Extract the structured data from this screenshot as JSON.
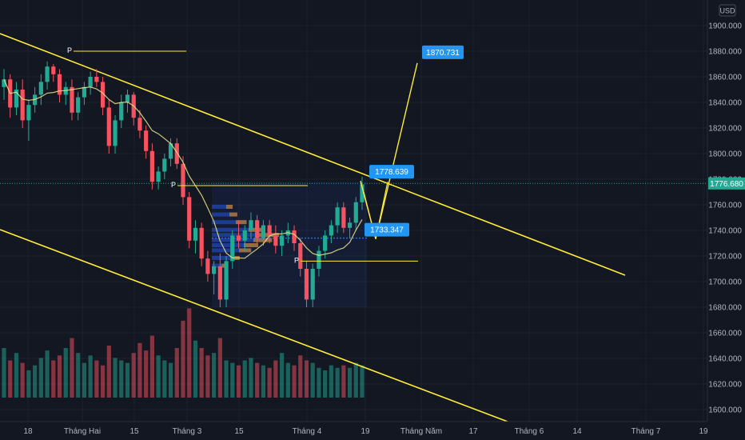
{
  "chart_data": {
    "type": "candlestick",
    "currency": "USD",
    "y_ticks": [
      1600,
      1620,
      1640,
      1660,
      1680,
      1700,
      1720,
      1740,
      1760,
      1780,
      1800,
      1820,
      1840,
      1860,
      1880,
      1900
    ],
    "y_tick_labels": [
      "1600.000",
      "1620.000",
      "1640.000",
      "1660.000",
      "1680.000",
      "1700.000",
      "1720.000",
      "1740.000",
      "1760.000",
      "1780.000",
      "1800.000",
      "1820.000",
      "1840.000",
      "1860.000",
      "1880.000",
      "1900.000"
    ],
    "ylim": [
      1593,
      1922
    ],
    "x_ticks": [
      "18",
      "Tháng Hai",
      "15",
      "Tháng 3",
      "15",
      "Tháng 4",
      "19",
      "Tháng Năm",
      "17",
      "Tháng 6",
      "14",
      "Tháng 7",
      "19"
    ],
    "current_price": 1776.68,
    "current_price_label": "1776.680",
    "annotations": [
      {
        "label": "1870.731",
        "value": 1870.731
      },
      {
        "label": "1778.639",
        "value": 1778.639
      },
      {
        "label": "1733.347",
        "value": 1733.347
      }
    ],
    "pivot_label": "P",
    "candles_ohlc": [
      [
        1852,
        1866,
        1842,
        1858
      ],
      [
        1858,
        1862,
        1828,
        1836
      ],
      [
        1836,
        1856,
        1830,
        1850
      ],
      [
        1850,
        1858,
        1820,
        1826
      ],
      [
        1826,
        1842,
        1810,
        1838
      ],
      [
        1838,
        1852,
        1832,
        1846
      ],
      [
        1846,
        1862,
        1838,
        1856
      ],
      [
        1856,
        1872,
        1850,
        1868
      ],
      [
        1868,
        1870,
        1856,
        1862
      ],
      [
        1862,
        1866,
        1840,
        1846
      ],
      [
        1846,
        1856,
        1838,
        1852
      ],
      [
        1852,
        1858,
        1826,
        1832
      ],
      [
        1832,
        1848,
        1826,
        1844
      ],
      [
        1844,
        1856,
        1838,
        1852
      ],
      [
        1852,
        1864,
        1846,
        1860
      ],
      [
        1860,
        1866,
        1852,
        1856
      ],
      [
        1856,
        1860,
        1830,
        1836
      ],
      [
        1836,
        1842,
        1800,
        1806
      ],
      [
        1806,
        1830,
        1800,
        1826
      ],
      [
        1826,
        1846,
        1820,
        1840
      ],
      [
        1840,
        1850,
        1832,
        1846
      ],
      [
        1846,
        1848,
        1822,
        1828
      ],
      [
        1828,
        1834,
        1812,
        1818
      ],
      [
        1818,
        1822,
        1796,
        1802
      ],
      [
        1802,
        1808,
        1772,
        1778
      ],
      [
        1778,
        1790,
        1772,
        1786
      ],
      [
        1786,
        1800,
        1780,
        1796
      ],
      [
        1796,
        1812,
        1790,
        1808
      ],
      [
        1808,
        1812,
        1788,
        1792
      ],
      [
        1792,
        1798,
        1760,
        1766
      ],
      [
        1766,
        1770,
        1726,
        1732
      ],
      [
        1732,
        1748,
        1722,
        1742
      ],
      [
        1742,
        1746,
        1712,
        1718
      ],
      [
        1718,
        1724,
        1700,
        1706
      ],
      [
        1706,
        1716,
        1690,
        1712
      ],
      [
        1712,
        1722,
        1680,
        1686
      ],
      [
        1686,
        1720,
        1680,
        1716
      ],
      [
        1716,
        1740,
        1710,
        1736
      ],
      [
        1736,
        1748,
        1726,
        1732
      ],
      [
        1732,
        1744,
        1724,
        1740
      ],
      [
        1740,
        1754,
        1734,
        1748
      ],
      [
        1748,
        1752,
        1730,
        1734
      ],
      [
        1734,
        1748,
        1728,
        1744
      ],
      [
        1744,
        1748,
        1730,
        1736
      ],
      [
        1736,
        1744,
        1722,
        1728
      ],
      [
        1728,
        1740,
        1720,
        1736
      ],
      [
        1736,
        1746,
        1730,
        1740
      ],
      [
        1740,
        1744,
        1724,
        1730
      ],
      [
        1730,
        1734,
        1704,
        1710
      ],
      [
        1710,
        1716,
        1680,
        1686
      ],
      [
        1686,
        1714,
        1680,
        1710
      ],
      [
        1710,
        1728,
        1704,
        1724
      ],
      [
        1724,
        1740,
        1718,
        1736
      ],
      [
        1736,
        1748,
        1730,
        1744
      ],
      [
        1744,
        1762,
        1738,
        1758
      ],
      [
        1758,
        1762,
        1738,
        1742
      ],
      [
        1742,
        1750,
        1734,
        1746
      ],
      [
        1746,
        1766,
        1740,
        1762
      ],
      [
        1762,
        1782,
        1756,
        1776
      ]
    ],
    "volume": [
      40,
      30,
      36,
      28,
      22,
      26,
      32,
      38,
      30,
      34,
      40,
      48,
      36,
      28,
      34,
      30,
      26,
      42,
      32,
      30,
      28,
      36,
      44,
      38,
      50,
      34,
      30,
      28,
      40,
      62,
      72,
      46,
      40,
      34,
      36,
      48,
      30,
      28,
      26,
      30,
      32,
      28,
      26,
      24,
      30,
      36,
      28,
      26,
      34,
      30,
      28,
      24,
      22,
      26,
      24,
      26,
      24,
      28,
      26
    ]
  }
}
